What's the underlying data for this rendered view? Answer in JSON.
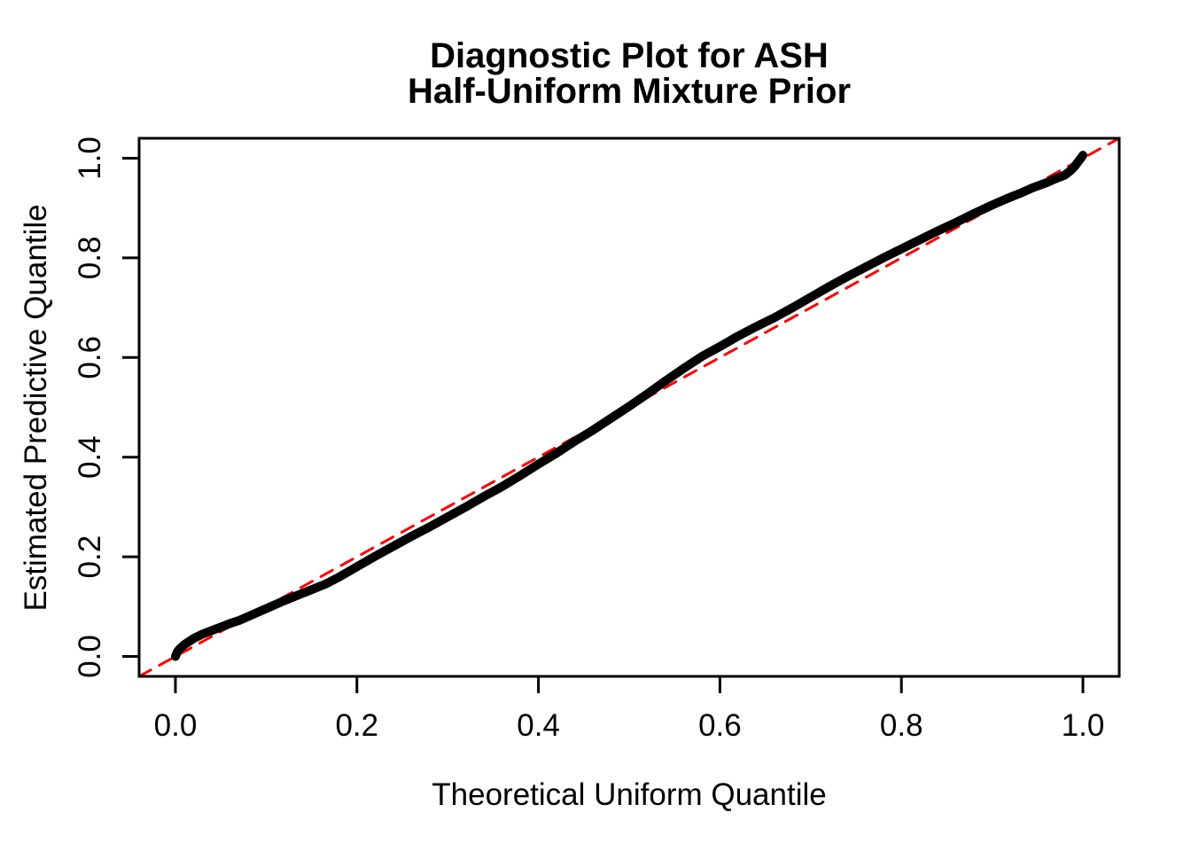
{
  "figure": {
    "background": "#FFFFFF",
    "foreground": "#000000"
  },
  "chart_data": {
    "type": "line",
    "title": "Diagnostic Plot for ASH\nHalf-Uniform Mixture Prior",
    "title_lines": [
      "Diagnostic Plot for ASH",
      "Half-Uniform Mixture Prior"
    ],
    "xlabel": "Theoretical Uniform Quantile",
    "ylabel": "Estimated Predictive Quantile",
    "xlim": [
      -0.04,
      1.04
    ],
    "ylim": [
      -0.04,
      1.04
    ],
    "xticks": [
      0.0,
      0.2,
      0.4,
      0.6,
      0.8,
      1.0
    ],
    "yticks": [
      0.0,
      0.2,
      0.4,
      0.6,
      0.8,
      1.0
    ],
    "xtick_labels": [
      "0.0",
      "0.2",
      "0.4",
      "0.6",
      "0.8",
      "1.0"
    ],
    "ytick_labels": [
      "0.0",
      "0.2",
      "0.4",
      "0.6",
      "0.8",
      "1.0"
    ],
    "grid": false,
    "legend": null,
    "box_color": "#000000",
    "series": [
      {
        "name": "estimated-vs-theoretical-quantile-curve",
        "kind": "qq-curve",
        "color": "#000000",
        "line_width": 10,
        "dash": null,
        "points": [
          [
            0.0,
            0.0
          ],
          [
            0.002,
            0.009
          ],
          [
            0.004,
            0.014
          ],
          [
            0.007,
            0.019
          ],
          [
            0.01,
            0.024
          ],
          [
            0.015,
            0.03
          ],
          [
            0.02,
            0.036
          ],
          [
            0.03,
            0.045
          ],
          [
            0.04,
            0.052
          ],
          [
            0.05,
            0.059
          ],
          [
            0.06,
            0.066
          ],
          [
            0.07,
            0.072
          ],
          [
            0.08,
            0.08
          ],
          [
            0.09,
            0.088
          ],
          [
            0.1,
            0.096
          ],
          [
            0.11,
            0.104
          ],
          [
            0.12,
            0.112
          ],
          [
            0.135,
            0.123
          ],
          [
            0.15,
            0.134
          ],
          [
            0.165,
            0.145
          ],
          [
            0.18,
            0.159
          ],
          [
            0.2,
            0.18
          ],
          [
            0.22,
            0.201
          ],
          [
            0.24,
            0.221
          ],
          [
            0.26,
            0.241
          ],
          [
            0.28,
            0.26
          ],
          [
            0.3,
            0.28
          ],
          [
            0.32,
            0.3
          ],
          [
            0.34,
            0.321
          ],
          [
            0.36,
            0.341
          ],
          [
            0.38,
            0.363
          ],
          [
            0.4,
            0.386
          ],
          [
            0.42,
            0.408
          ],
          [
            0.44,
            0.432
          ],
          [
            0.46,
            0.454
          ],
          [
            0.48,
            0.478
          ],
          [
            0.5,
            0.502
          ],
          [
            0.52,
            0.527
          ],
          [
            0.54,
            0.553
          ],
          [
            0.56,
            0.578
          ],
          [
            0.58,
            0.602
          ],
          [
            0.6,
            0.622
          ],
          [
            0.62,
            0.643
          ],
          [
            0.64,
            0.662
          ],
          [
            0.66,
            0.68
          ],
          [
            0.68,
            0.7
          ],
          [
            0.7,
            0.721
          ],
          [
            0.72,
            0.742
          ],
          [
            0.74,
            0.762
          ],
          [
            0.76,
            0.781
          ],
          [
            0.78,
            0.8
          ],
          [
            0.8,
            0.818
          ],
          [
            0.82,
            0.836
          ],
          [
            0.84,
            0.854
          ],
          [
            0.86,
            0.871
          ],
          [
            0.88,
            0.889
          ],
          [
            0.9,
            0.906
          ],
          [
            0.915,
            0.918
          ],
          [
            0.93,
            0.929
          ],
          [
            0.945,
            0.941
          ],
          [
            0.96,
            0.951
          ],
          [
            0.97,
            0.959
          ],
          [
            0.98,
            0.966
          ],
          [
            0.987,
            0.976
          ],
          [
            0.992,
            0.986
          ],
          [
            0.996,
            0.996
          ],
          [
            0.999,
            1.003
          ],
          [
            1.0,
            1.006
          ]
        ]
      },
      {
        "name": "identity-reference-line",
        "kind": "reference-line",
        "color": "#FF0000",
        "line_width": 3,
        "dash": [
          15,
          11
        ],
        "points": [
          [
            -0.04,
            -0.04
          ],
          [
            1.04,
            1.04
          ]
        ]
      }
    ]
  }
}
